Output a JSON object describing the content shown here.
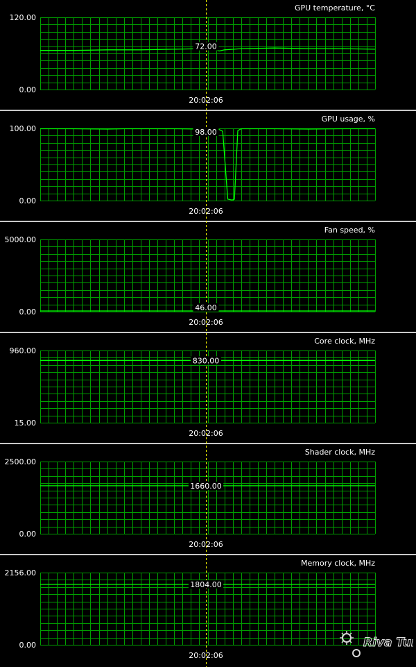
{
  "cursor_time": "20:02:06",
  "logo_text": "Riva Tuner",
  "chart_data": [
    {
      "type": "line",
      "title": "GPU temperature, °C",
      "ylim": [
        0,
        120
      ],
      "y_labels": [
        "120.00",
        "0.00"
      ],
      "cursor_value": "72.00",
      "series": [
        {
          "x": [
            0,
            0.1,
            0.2,
            0.3,
            0.4,
            0.48,
            0.52,
            0.535,
            0.55,
            0.6,
            0.7,
            0.8,
            0.9,
            1.0
          ],
          "values": [
            65,
            65,
            66,
            66,
            67,
            68,
            67,
            64,
            66,
            68,
            69,
            68,
            68,
            67
          ]
        }
      ]
    },
    {
      "type": "line",
      "title": "GPU usage, %",
      "ylim": [
        0,
        100
      ],
      "y_labels": [
        "100.00",
        "0.00"
      ],
      "cursor_value": "98.00",
      "series": [
        {
          "x": [
            0,
            0.1,
            0.2,
            0.25,
            0.4,
            0.48,
            0.53,
            0.545,
            0.56,
            0.57,
            0.575,
            0.58,
            0.59,
            0.6,
            0.7,
            0.8,
            0.9,
            1.0
          ],
          "values": [
            100,
            100,
            99,
            100,
            100,
            99,
            100,
            96,
            2,
            0,
            0,
            2,
            97,
            100,
            100,
            99,
            100,
            100
          ]
        }
      ]
    },
    {
      "type": "line",
      "title": "Fan speed, %",
      "ylim": [
        0,
        5000
      ],
      "y_labels": [
        "5000.00",
        "0.00"
      ],
      "cursor_value": "46.00",
      "series": [
        {
          "x": [
            0,
            1.0
          ],
          "values": [
            46,
            46
          ]
        }
      ]
    },
    {
      "type": "line",
      "title": "Core clock, MHz",
      "ylim": [
        15,
        960
      ],
      "y_labels": [
        "960.00",
        "15.00"
      ],
      "cursor_value": "830.00",
      "series": [
        {
          "x": [
            0,
            1.0
          ],
          "values": [
            830,
            830
          ]
        }
      ]
    },
    {
      "type": "line",
      "title": "Shader clock, MHz",
      "ylim": [
        0,
        2500
      ],
      "y_labels": [
        "2500.00",
        "0.00"
      ],
      "cursor_value": "1660.00",
      "series": [
        {
          "x": [
            0,
            1.0
          ],
          "values": [
            1660,
            1660
          ]
        }
      ]
    },
    {
      "type": "line",
      "title": "Memory clock, MHz",
      "ylim": [
        0,
        2156
      ],
      "y_labels": [
        "2156.00",
        "0.00"
      ],
      "cursor_value": "1804.00",
      "series": [
        {
          "x": [
            0,
            1.0
          ],
          "values": [
            1804,
            1804
          ]
        }
      ]
    }
  ]
}
